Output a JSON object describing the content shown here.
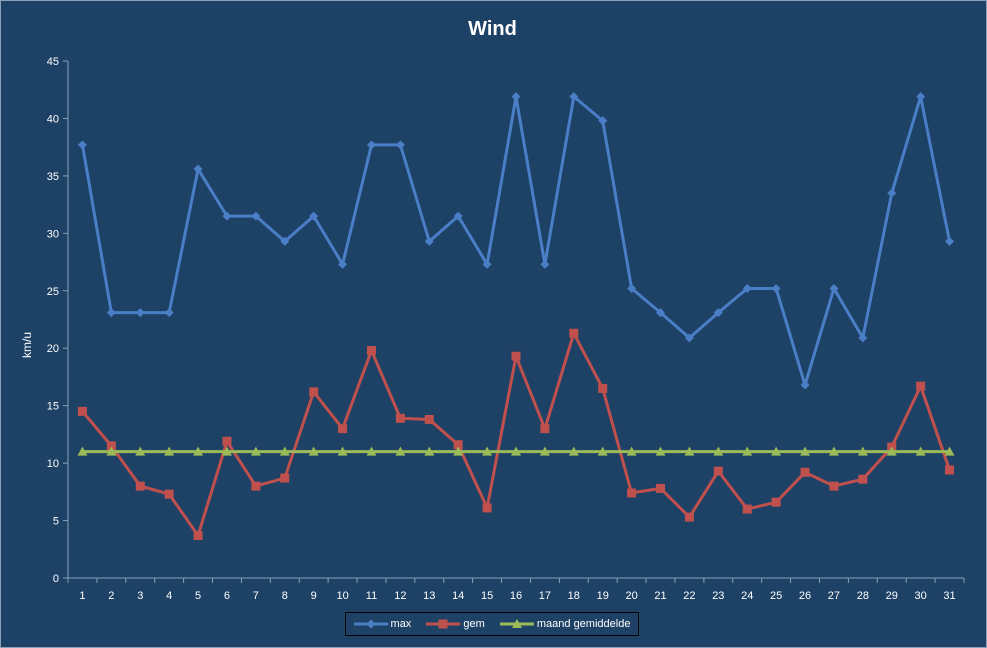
{
  "chart_data": {
    "type": "line",
    "title": "Wind",
    "xlabel": "",
    "ylabel": "km/u",
    "ylim": [
      0,
      45
    ],
    "ytick_step": 5,
    "grid": false,
    "legend_position": "bottom",
    "background_color": "#1e4166",
    "x": [
      1,
      2,
      3,
      4,
      5,
      6,
      7,
      8,
      9,
      10,
      11,
      12,
      13,
      14,
      15,
      16,
      17,
      18,
      19,
      20,
      21,
      22,
      23,
      24,
      25,
      26,
      27,
      28,
      29,
      30,
      31
    ],
    "series": [
      {
        "name": "max",
        "color": "#4a7ec6",
        "marker": "diamond",
        "values": [
          37.7,
          23.1,
          23.1,
          23.1,
          35.6,
          31.5,
          31.5,
          29.3,
          31.5,
          27.3,
          37.7,
          37.7,
          29.3,
          31.5,
          27.3,
          41.9,
          27.3,
          41.9,
          39.8,
          25.2,
          23.1,
          20.9,
          23.1,
          25.2,
          25.2,
          16.8,
          25.2,
          20.9,
          33.5,
          41.9,
          29.3
        ]
      },
      {
        "name": "gem",
        "color": "#c0504d",
        "marker": "square",
        "values": [
          14.5,
          11.5,
          8.0,
          7.3,
          3.7,
          11.9,
          8.0,
          8.7,
          16.2,
          13.0,
          19.8,
          13.9,
          13.8,
          11.6,
          6.1,
          19.3,
          13.0,
          21.3,
          16.5,
          7.4,
          7.8,
          5.3,
          9.3,
          6.0,
          6.6,
          9.2,
          8.0,
          8.6,
          11.4,
          16.7,
          9.4
        ]
      },
      {
        "name": "maand gemiddelde",
        "color": "#9bbb59",
        "marker": "triangle",
        "values": [
          11,
          11,
          11,
          11,
          11,
          11,
          11,
          11,
          11,
          11,
          11,
          11,
          11,
          11,
          11,
          11,
          11,
          11,
          11,
          11,
          11,
          11,
          11,
          11,
          11,
          11,
          11,
          11,
          11,
          11,
          11
        ]
      }
    ]
  }
}
